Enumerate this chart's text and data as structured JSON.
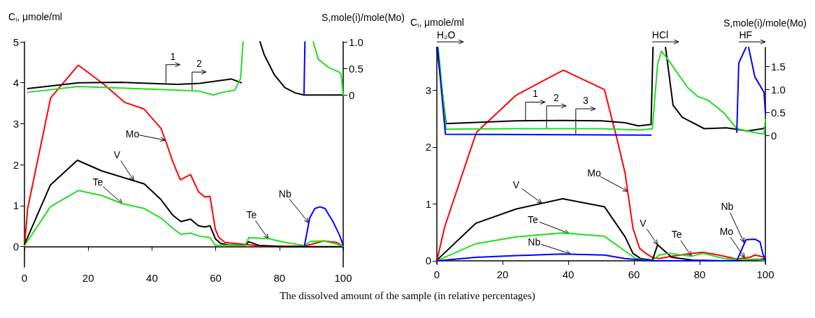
{
  "chart_data": [
    {
      "type": "line",
      "xlabel": "The dissolved amount of the sample (in relative percentages)",
      "ylabel": "C$_{i}$, μmole/ml",
      "y2label": "S,mole(i)/mole(Mo)",
      "xlim": [
        0,
        100
      ],
      "xticks": [
        0,
        20,
        40,
        60,
        80,
        100
      ],
      "ylim": [
        -0.5,
        5
      ],
      "yticks": [
        0,
        1,
        2,
        3,
        4,
        5
      ],
      "y2lim": [
        -3.24,
        1.0
      ],
      "y2ticks": [
        0,
        0.5,
        {
          "value": 1,
          "label": "1.0"
        }
      ],
      "series": [
        {
          "color": "#ff0000",
          "x": [
            0,
            1,
            8.2,
            16.9,
            24.8,
            31.5,
            37.5,
            42.8,
            44,
            46.5,
            48.9,
            52.1,
            54.6,
            56.6,
            58.2,
            59.9,
            61,
            63,
            68,
            73.6,
            80,
            87.8,
            93.9,
            98,
            100
          ],
          "values": [
            0,
            0.93,
            3.63,
            4.43,
            3.97,
            3.52,
            3.36,
            2.89,
            2.65,
            2.08,
            1.63,
            1.76,
            1.34,
            1.21,
            1.23,
            0.42,
            0.22,
            0.1,
            0.06,
            0.02,
            0.01,
            0.01,
            0.14,
            0.1,
            0.01
          ]
        },
        {
          "color": "#000000",
          "x": [
            0,
            8.1,
            16.6,
            24.2,
            37.6,
            42.8,
            46.5,
            49.1,
            52.1,
            54.6,
            56.6,
            58.2,
            59.9,
            61.5,
            63.9,
            69.2,
            70.4,
            73.6,
            81.8,
            100
          ],
          "values": [
            0.05,
            1.5,
            2.11,
            1.85,
            1.53,
            1.15,
            0.77,
            0.61,
            0.67,
            0.51,
            0.48,
            0.51,
            0.19,
            0.08,
            0.04,
            0.03,
            0.12,
            0.03,
            0,
            0
          ]
        },
        {
          "color": "#22dd22",
          "x": [
            0,
            8.1,
            16.9,
            24.2,
            30.7,
            37.6,
            42.8,
            46.5,
            49.1,
            52.1,
            54.6,
            58.2,
            59.9,
            69.2,
            70.4,
            76.9,
            81.8,
            87.8,
            89.9,
            93.9,
            98,
            100
          ],
          "values": [
            0.02,
            0.97,
            1.37,
            1.25,
            1.05,
            0.93,
            0.7,
            0.45,
            0.3,
            0.33,
            0.26,
            0.22,
            0.03,
            0.03,
            0.22,
            0.19,
            0.1,
            0.03,
            0.13,
            0.14,
            0.06,
            0.01
          ]
        },
        {
          "color": "#0000ff",
          "x": [
            87.8,
            89.5,
            91.1,
            92.7,
            94.3,
            96.8,
            98.8,
            100
          ],
          "values": [
            0,
            0.7,
            0.93,
            0.97,
            0.93,
            0.61,
            0.29,
            0.03
          ]
        },
        {
          "color": "#000000",
          "axis": "y2",
          "x": [
            1,
            17,
            30,
            48,
            55,
            65,
            68,
            70,
            73.9,
            75.2,
            78.4,
            81.7,
            84.9,
            87.7,
            100
          ],
          "values": [
            0.12,
            0.23,
            0.24,
            0.2,
            0.22,
            0.3,
            0.23,
            null,
            1.0,
            0.76,
            0.38,
            0.14,
            0.04,
            0,
            0
          ]
        },
        {
          "color": "#22dd22",
          "axis": "y2",
          "x": [
            1,
            17,
            48,
            55,
            59.3,
            62,
            66,
            67.8,
            68.6,
            70,
            90.6,
            92.2,
            95.4,
            98.7,
            99.3,
            100
          ],
          "values": [
            0.05,
            0.16,
            0.09,
            0.07,
            0,
            0.05,
            0.09,
            0.31,
            1.0,
            null,
            1.0,
            0.67,
            0.52,
            0.43,
            0.4,
            0
          ]
        },
        {
          "color": "#0000ff",
          "axis": "y2",
          "x": [
            87.7,
            88
          ],
          "values": [
            0,
            1.0
          ]
        }
      ],
      "annotations": [
        {
          "text": "1",
          "x": 44.4,
          "y": 4.0
        },
        {
          "text": "2",
          "x": 52.6,
          "y": 3.82
        },
        {
          "text": "Mo",
          "x": 44.2,
          "y": 2.6
        },
        {
          "text": "V",
          "x": 34.3,
          "y": 1.61
        },
        {
          "text": "Te",
          "x": 30.7,
          "y": 1.05
        },
        {
          "text": "Te",
          "x": 76.5,
          "y": 0.19
        },
        {
          "text": "Nb",
          "x": 89.2,
          "y": 0.58
        }
      ]
    },
    {
      "type": "line",
      "ylabel": "C$_{i}$, μmole/ml",
      "y2label": "S,mole(i)/mole(Mo)",
      "xlim": [
        0,
        100
      ],
      "xticks": [
        0,
        20,
        40,
        60,
        80,
        100
      ],
      "ylim": [
        -0.05,
        3.75
      ],
      "yticks": [
        0,
        1,
        2,
        3
      ],
      "y2lim": [
        -2.79,
        1.92
      ],
      "y2ticks": [
        0,
        0.5,
        {
          "value": 1,
          "label": "1.0"
        },
        1.5
      ],
      "series": [
        {
          "color": "#ff0000",
          "x": [
            0,
            2.4,
            11.1,
            12.1,
            24.1,
            38.5,
            51,
            55,
            57.3,
            59.7,
            61.7,
            63.6,
            65.6,
            67.6,
            71.5,
            77.9,
            81,
            85.8,
            91.3,
            95.3,
            96.8,
            100
          ],
          "values": [
            0,
            0.6,
            2.1,
            2.26,
            2.91,
            3.35,
            3.01,
            2.1,
            1.54,
            0.57,
            0.22,
            0.13,
            0.06,
            0.04,
            0.08,
            0.13,
            0.15,
            0.1,
            0.03,
            0.06,
            0.1,
            0.06
          ]
        },
        {
          "color": "#000000",
          "x": [
            0,
            11.9,
            24.1,
            38.3,
            51,
            57.3,
            59.7,
            62,
            65.6,
            67.2,
            71.5,
            77.9,
            87.4,
            100
          ],
          "values": [
            0.01,
            0.66,
            0.91,
            1.09,
            0.95,
            0.42,
            0.13,
            0.04,
            0.01,
            0.28,
            0.06,
            0.01,
            0,
            0.03
          ]
        },
        {
          "color": "#22dd22",
          "x": [
            0,
            11.9,
            24.1,
            38.3,
            51,
            57.3,
            60.5,
            65.6,
            67.6,
            70.8,
            77.5,
            81,
            87.4,
            93.7,
            97.6,
            100
          ],
          "values": [
            0,
            0.3,
            0.42,
            0.49,
            0.43,
            0.17,
            0.04,
            0,
            0.1,
            0.13,
            0.08,
            0.13,
            0.04,
            0.02,
            0.03,
            0
          ]
        },
        {
          "color": "#0000ff",
          "x": [
            0,
            11.9,
            24.1,
            38.3,
            51,
            57.3,
            65.6,
            91.3,
            94.1,
            96.8,
            98.4,
            99.2,
            100
          ],
          "values": [
            0,
            0.06,
            0.09,
            0.12,
            0.1,
            0.04,
            0,
            0,
            0.37,
            0.38,
            0.33,
            0.13,
            0
          ]
        },
        {
          "color": "#000000",
          "axis": "y2",
          "x": [
            0,
            2.8,
            24.1,
            38.3,
            50.2,
            57.3,
            61.3,
            65.2,
            65.8,
            67.5,
            69.6,
            71.9,
            74.7,
            81.4,
            88.1,
            94.5,
            99.2,
            100
          ],
          "values": [
            1.92,
            0.26,
            0.32,
            0.33,
            0.32,
            0.28,
            0.21,
            0.24,
            1.92,
            null,
            1.92,
            0.66,
            0.4,
            0.15,
            0.17,
            0.1,
            0.15,
            0.18
          ]
        },
        {
          "color": "#22dd22",
          "axis": "y2",
          "x": [
            0.4,
            2.8,
            24.1,
            50.2,
            62.1,
            65.6,
            67.2,
            68.4,
            70.8,
            76.3,
            79.4,
            82.6,
            87.4,
            91.3,
            94.5,
            98.4,
            99.6,
            100
          ],
          "values": [
            1.92,
            0.14,
            0.15,
            0.15,
            0.12,
            0.15,
            1.56,
            1.84,
            1.61,
            1.05,
            0.85,
            0.77,
            0.49,
            0.15,
            0.1,
            0.04,
            0.04,
            0.35
          ]
        },
        {
          "color": "#0000ff",
          "axis": "y2",
          "x": [
            0.2,
            2.6,
            65.2,
            78,
            91.3,
            91.9,
            94.1,
            94.5,
            94.9,
            96.8,
            99.6,
            100
          ],
          "values": [
            1.92,
            0.03,
            0.01,
            null,
            0.07,
            1.58,
            1.92,
            null,
            1.92,
            1.28,
            0.94,
            0.49
          ]
        }
      ],
      "annotations": [
        "H₂O",
        "HCl",
        "HF",
        {
          "text": "1",
          "x": 27,
          "y": 2.47
        },
        {
          "text": "2",
          "x": 33.4,
          "y": 2.33
        },
        {
          "text": "3",
          "x": 42.3,
          "y": 2.23
        },
        {
          "text": "Mo",
          "x": 58.1,
          "y": 1.22
        },
        {
          "text": "V",
          "x": 32,
          "y": 1.01
        },
        {
          "text": "Te",
          "x": 40.3,
          "y": 0.48
        },
        {
          "text": "Nb",
          "x": 40.7,
          "y": 0.12
        },
        {
          "text": "V",
          "x": 67.2,
          "y": 0.28
        },
        {
          "text": "Te",
          "x": 77.5,
          "y": 0.08
        },
        {
          "text": "Nb",
          "x": 93.5,
          "y": 0.32
        },
        {
          "text": "Mo",
          "x": 93.7,
          "y": 0.05
        }
      ]
    }
  ]
}
